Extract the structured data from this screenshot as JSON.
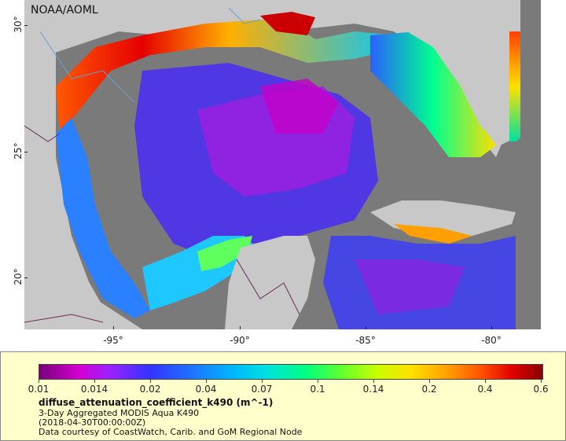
{
  "map": {
    "org_label": "NOAA/AOML",
    "lat_ticks": [
      "30°",
      "25°",
      "20°"
    ],
    "lon_ticks": [
      "-95°",
      "-90°",
      "-85°",
      "-80°"
    ],
    "colors": {
      "land": "#c8c8c8",
      "no_data": "#7a7a7a",
      "coastline": "#6a9fd4",
      "border": "#6a2a5a"
    }
  },
  "legend": {
    "scale_ticks": [
      "0.01",
      "0.014",
      "0.02",
      "0.04",
      "0.07",
      "0.1",
      "0.14",
      "0.2",
      "0.4",
      "0.6"
    ],
    "title": "diffuse_attenuation_coefficient_k490 (m^-1)",
    "subtitle": "3-Day Aggregated MODIS Aqua K490",
    "date": "(2018-04-30T00:00:00Z)",
    "credit": "Data courtesy of CoastWatch, Carib. and GoM Regional Node",
    "colors": {
      "panel_bg": "#ffffcc",
      "low": "#780078",
      "mid": "#00ff80",
      "high": "#8a0000"
    }
  }
}
